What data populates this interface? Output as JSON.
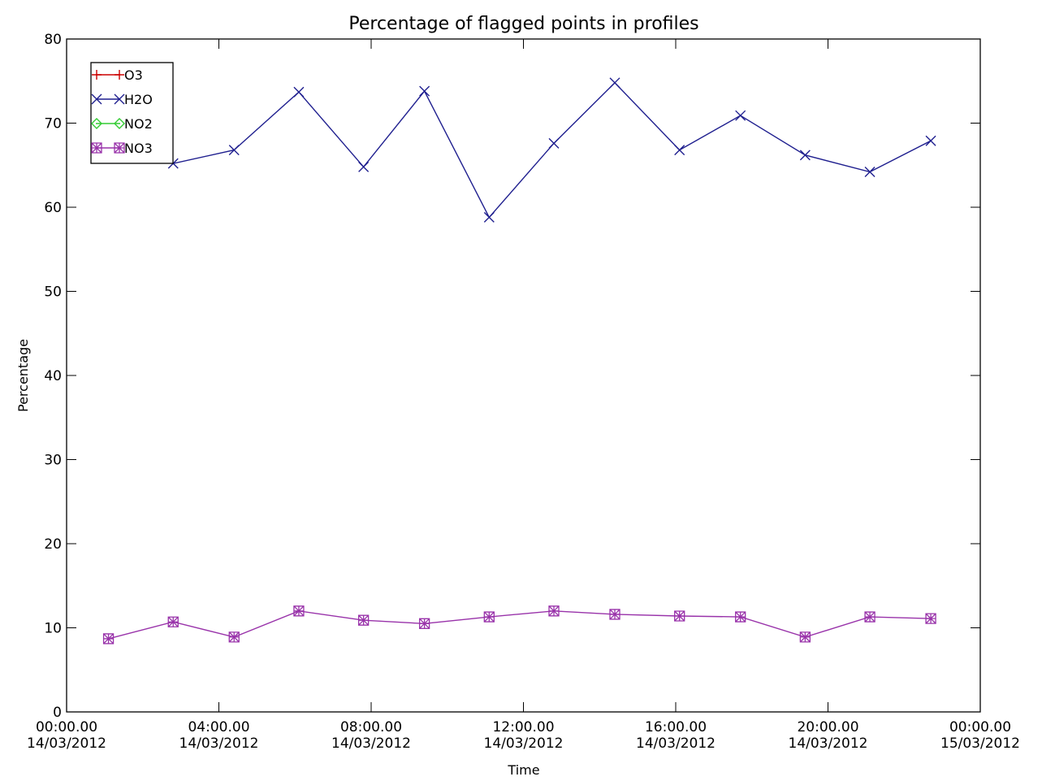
{
  "chart_data": {
    "type": "line",
    "title": "Percentage of flagged points in profiles",
    "xlabel": "Time",
    "ylabel": "Percentage",
    "ylim": [
      0,
      80
    ],
    "xlim": [
      0,
      24
    ],
    "grid": false,
    "legend_position": "top-left",
    "y_ticks": [
      "0",
      "10",
      "20",
      "30",
      "40",
      "50",
      "60",
      "70",
      "80"
    ],
    "x_ticks": [
      {
        "time": "00:00.00",
        "date": "14/03/2012"
      },
      {
        "time": "04:00.00",
        "date": "14/03/2012"
      },
      {
        "time": "08:00.00",
        "date": "14/03/2012"
      },
      {
        "time": "12:00.00",
        "date": "14/03/2012"
      },
      {
        "time": "16:00.00",
        "date": "14/03/2012"
      },
      {
        "time": "20:00.00",
        "date": "14/03/2012"
      },
      {
        "time": "00:00.00",
        "date": "15/03/2012"
      }
    ],
    "x": [
      1.1,
      2.8,
      4.4,
      6.1,
      7.8,
      9.4,
      11.1,
      12.8,
      14.4,
      16.1,
      17.7,
      19.4,
      21.1,
      22.7
    ],
    "series": [
      {
        "name": "O3",
        "color": "#cc0000",
        "marker": "plus",
        "values": null
      },
      {
        "name": "H2O",
        "color": "#1f1f8f",
        "marker": "x",
        "values": [
          67.0,
          65.2,
          66.8,
          73.7,
          64.8,
          73.8,
          58.8,
          67.6,
          74.8,
          66.8,
          70.9,
          66.2,
          64.2,
          67.9
        ]
      },
      {
        "name": "NO2",
        "color": "#33cc33",
        "marker": "diamond",
        "values": null
      },
      {
        "name": "NO3",
        "color": "#9933aa",
        "marker": "square-x",
        "values": [
          8.7,
          10.7,
          8.9,
          12.0,
          10.9,
          10.5,
          11.3,
          12.0,
          11.6,
          11.4,
          11.3,
          8.9,
          11.3,
          11.1
        ]
      }
    ]
  }
}
